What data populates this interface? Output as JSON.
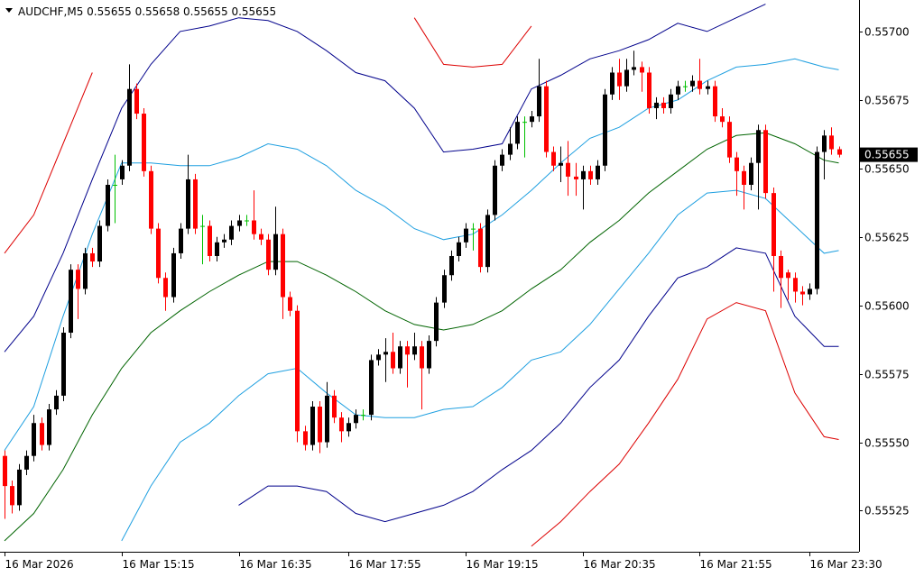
{
  "chart_data": {
    "type": "candlestick",
    "title": "AUDCHF,M5  0.55655 0.55658 0.55655 0.55655",
    "categories": [
      "16 Mar 2026",
      null,
      null,
      null,
      null,
      null,
      null,
      null,
      null,
      null,
      null,
      null,
      null,
      null,
      null,
      null,
      "16 Mar 15:15",
      null,
      null,
      null,
      null,
      null,
      null,
      null,
      null,
      null,
      null,
      null,
      null,
      null,
      null,
      null,
      "16 Mar 16:35",
      null,
      null,
      null,
      null,
      null,
      null,
      null,
      null,
      null,
      null,
      null,
      null,
      null,
      null,
      "16 Mar 17:55",
      null,
      null,
      null,
      null,
      null,
      null,
      null,
      null,
      null,
      null,
      null,
      null,
      null,
      null,
      null,
      "16 Mar 19:15",
      null,
      null,
      null,
      null,
      null,
      null,
      null,
      null,
      null,
      null,
      null,
      null,
      null,
      null,
      null,
      "16 Mar 20:35",
      null,
      null,
      null,
      null,
      null,
      null,
      null,
      null,
      null,
      null,
      null,
      null,
      null,
      null,
      null,
      "16 Mar 21:55",
      null,
      null,
      null,
      null,
      null,
      null,
      null,
      null,
      null,
      null,
      null,
      null,
      null,
      null,
      "16 Mar 23:30",
      null,
      null,
      null,
      null
    ],
    "ohlc": [
      [
        0.55545,
        0.55547,
        0.55522,
        0.55534
      ],
      [
        0.55534,
        0.55536,
        0.55524,
        0.55527
      ],
      [
        0.55527,
        0.55542,
        0.55525,
        0.5554
      ],
      [
        0.5554,
        0.55547,
        0.55538,
        0.55545
      ],
      [
        0.55545,
        0.5556,
        0.55543,
        0.55557
      ],
      [
        0.55557,
        0.55559,
        0.55547,
        0.55549
      ],
      [
        0.55549,
        0.55564,
        0.55547,
        0.55562
      ],
      [
        0.55562,
        0.55569,
        0.5556,
        0.55567
      ],
      [
        0.55567,
        0.55592,
        0.55565,
        0.5559
      ],
      [
        0.5559,
        0.55615,
        0.55588,
        0.55613
      ],
      [
        0.55613,
        0.55615,
        0.55595,
        0.55606
      ],
      [
        0.55606,
        0.55621,
        0.55604,
        0.55619
      ],
      [
        0.55619,
        0.55621,
        0.55614,
        0.55616
      ],
      [
        0.55616,
        0.55631,
        0.55614,
        0.55629
      ],
      [
        0.55629,
        0.55646,
        0.55627,
        0.55644
      ],
      [
        0.55644,
        0.55655,
        0.5563,
        0.55644
      ],
      [
        0.55646,
        0.55653,
        0.55644,
        0.55651
      ],
      [
        0.55651,
        0.55688,
        0.55649,
        0.55679
      ],
      [
        0.55679,
        0.55681,
        0.55668,
        0.5567
      ],
      [
        0.5567,
        0.55672,
        0.55647,
        0.55649
      ],
      [
        0.55649,
        0.55651,
        0.55626,
        0.55628
      ],
      [
        0.55628,
        0.5563,
        0.55608,
        0.5561
      ],
      [
        0.5561,
        0.55612,
        0.55598,
        0.55603
      ],
      [
        0.55603,
        0.55621,
        0.55601,
        0.55619
      ],
      [
        0.55619,
        0.5563,
        0.55617,
        0.55628
      ],
      [
        0.55628,
        0.55655,
        0.55626,
        0.55646
      ],
      [
        0.55646,
        0.55648,
        0.55626,
        0.55628
      ],
      [
        0.55629,
        0.55633,
        0.55615,
        0.55629
      ],
      [
        0.55629,
        0.55631,
        0.55616,
        0.55618
      ],
      [
        0.55618,
        0.55625,
        0.55616,
        0.55623
      ],
      [
        0.55623,
        0.55626,
        0.55621,
        0.55624
      ],
      [
        0.55624,
        0.55631,
        0.55622,
        0.55629
      ],
      [
        0.55629,
        0.55633,
        0.55627,
        0.55631
      ],
      [
        0.55631,
        0.55633,
        0.55629,
        0.55631
      ],
      [
        0.55631,
        0.55642,
        0.55624,
        0.55626
      ],
      [
        0.55626,
        0.55628,
        0.55622,
        0.55624
      ],
      [
        0.55624,
        0.55626,
        0.55611,
        0.55613
      ],
      [
        0.55613,
        0.55636,
        0.55611,
        0.55626
      ],
      [
        0.55626,
        0.55628,
        0.55595,
        0.55603
      ],
      [
        0.55603,
        0.55605,
        0.55596,
        0.55598
      ],
      [
        0.55598,
        0.556,
        0.5555,
        0.55554
      ],
      [
        0.55554,
        0.55556,
        0.55547,
        0.55549
      ],
      [
        0.55549,
        0.55565,
        0.55547,
        0.55563
      ],
      [
        0.55563,
        0.55565,
        0.55546,
        0.5555
      ],
      [
        0.5555,
        0.55572,
        0.55548,
        0.55567
      ],
      [
        0.55567,
        0.55569,
        0.55557,
        0.55559
      ],
      [
        0.55559,
        0.55561,
        0.5555,
        0.55554
      ],
      [
        0.55554,
        0.55559,
        0.55552,
        0.55557
      ],
      [
        0.55557,
        0.55562,
        0.55555,
        0.5556
      ],
      [
        0.5556,
        0.55562,
        0.55558,
        0.5556
      ],
      [
        0.5556,
        0.55582,
        0.55558,
        0.5558
      ],
      [
        0.5558,
        0.55584,
        0.55578,
        0.55582
      ],
      [
        0.55582,
        0.55588,
        0.55572,
        0.55583
      ],
      [
        0.55583,
        0.5559,
        0.55575,
        0.55577
      ],
      [
        0.55577,
        0.55587,
        0.55575,
        0.55585
      ],
      [
        0.55585,
        0.55587,
        0.5557,
        0.55582
      ],
      [
        0.55582,
        0.5559,
        0.5558,
        0.55585
      ],
      [
        0.55585,
        0.55587,
        0.55562,
        0.55577
      ],
      [
        0.55577,
        0.55589,
        0.55575,
        0.55587
      ],
      [
        0.55587,
        0.55603,
        0.55585,
        0.55601
      ],
      [
        0.55601,
        0.55613,
        0.55599,
        0.55611
      ],
      [
        0.55611,
        0.5562,
        0.55609,
        0.55618
      ],
      [
        0.55618,
        0.55625,
        0.55616,
        0.55623
      ],
      [
        0.55623,
        0.5563,
        0.55621,
        0.55628
      ],
      [
        0.55628,
        0.5563,
        0.5562,
        0.55628
      ],
      [
        0.55628,
        0.5563,
        0.55612,
        0.55614
      ],
      [
        0.55614,
        0.55635,
        0.55612,
        0.55633
      ],
      [
        0.55633,
        0.55653,
        0.55631,
        0.55651
      ],
      [
        0.55651,
        0.55657,
        0.55649,
        0.55655
      ],
      [
        0.55655,
        0.55665,
        0.55653,
        0.55659
      ],
      [
        0.55659,
        0.55669,
        0.55657,
        0.55667
      ],
      [
        0.55667,
        0.55669,
        0.55654,
        0.55667
      ],
      [
        0.55667,
        0.55671,
        0.55665,
        0.55669
      ],
      [
        0.55669,
        0.5569,
        0.55667,
        0.5568
      ],
      [
        0.5568,
        0.55682,
        0.55654,
        0.55656
      ],
      [
        0.55656,
        0.55658,
        0.55649,
        0.55651
      ],
      [
        0.55651,
        0.55658,
        0.55645,
        0.55652
      ],
      [
        0.55652,
        0.5566,
        0.5564,
        0.55647
      ],
      [
        0.55647,
        0.55652,
        0.5564,
        0.55646
      ],
      [
        0.55646,
        0.55651,
        0.55635,
        0.55649
      ],
      [
        0.55649,
        0.55651,
        0.55644,
        0.55646
      ],
      [
        0.55646,
        0.55653,
        0.55644,
        0.55651
      ],
      [
        0.55651,
        0.55679,
        0.55649,
        0.55677
      ],
      [
        0.55677,
        0.55687,
        0.55675,
        0.55685
      ],
      [
        0.55685,
        0.5569,
        0.55675,
        0.5568
      ],
      [
        0.5568,
        0.5569,
        0.55678,
        0.55686
      ],
      [
        0.55686,
        0.55693,
        0.55684,
        0.55687
      ],
      [
        0.55687,
        0.55689,
        0.55678,
        0.55685
      ],
      [
        0.55685,
        0.55687,
        0.5567,
        0.55672
      ],
      [
        0.55672,
        0.55676,
        0.55668,
        0.55674
      ],
      [
        0.55674,
        0.55676,
        0.5567,
        0.55672
      ],
      [
        0.55672,
        0.55679,
        0.5567,
        0.55677
      ],
      [
        0.55677,
        0.55682,
        0.55675,
        0.5568
      ],
      [
        0.5568,
        0.55682,
        0.55678,
        0.5568
      ],
      [
        0.5568,
        0.55684,
        0.55678,
        0.55682
      ],
      [
        0.55682,
        0.5569,
        0.55677,
        0.55679
      ],
      [
        0.55679,
        0.55682,
        0.55677,
        0.5568
      ],
      [
        0.5568,
        0.55682,
        0.55667,
        0.55669
      ],
      [
        0.55669,
        0.55672,
        0.55665,
        0.55667
      ],
      [
        0.55667,
        0.55669,
        0.55652,
        0.55654
      ],
      [
        0.55654,
        0.55656,
        0.5564,
        0.55649
      ],
      [
        0.55649,
        0.55651,
        0.55635,
        0.55644
      ],
      [
        0.55644,
        0.55654,
        0.55642,
        0.55652
      ],
      [
        0.55652,
        0.55666,
        0.55635,
        0.55664
      ],
      [
        0.55664,
        0.55666,
        0.55639,
        0.55641
      ],
      [
        0.55641,
        0.55643,
        0.55605,
        0.55618
      ],
      [
        0.55618,
        0.5562,
        0.55599,
        0.5561
      ],
      [
        0.55612,
        0.55613,
        0.55602,
        0.5561
      ],
      [
        0.5561,
        0.55612,
        0.55601,
        0.55605
      ],
      [
        0.55605,
        0.55607,
        0.556,
        0.55604
      ],
      [
        0.55604,
        0.55608,
        0.55602,
        0.55606
      ],
      [
        0.55606,
        0.55658,
        0.55604,
        0.55656
      ],
      [
        0.55656,
        0.55664,
        0.55646,
        0.55662
      ],
      [
        0.55662,
        0.55665,
        0.55655,
        0.55657
      ],
      [
        0.55657,
        0.55658,
        0.55654,
        0.55655
      ]
    ],
    "up_color": "#000000",
    "down_color": "#ff0000",
    "flat_color": "#00c000",
    "bands_x": [
      0,
      4,
      8,
      12,
      16,
      20,
      24,
      28,
      32,
      36,
      40,
      44,
      48,
      52,
      56,
      60,
      64,
      68,
      72,
      76,
      80,
      84,
      88,
      92,
      96,
      100,
      104,
      108,
      112,
      114
    ],
    "bands": [
      {
        "color": "#006400",
        "values": [
          0.55514,
          0.55524,
          0.5554,
          0.5556,
          0.55577,
          0.5559,
          0.55598,
          0.55605,
          0.55611,
          0.55616,
          0.55616,
          0.55611,
          0.55605,
          0.55598,
          0.55593,
          0.55591,
          0.55593,
          0.55598,
          0.55606,
          0.55613,
          0.55623,
          0.55631,
          0.55641,
          0.55649,
          0.55657,
          0.55662,
          0.55663,
          0.55659,
          0.55653,
          0.55652
        ]
      },
      {
        "color": "#1e9fe0",
        "values": [
          0.55547,
          0.55563,
          0.55596,
          0.55626,
          0.55652,
          0.55652,
          0.55651,
          0.55651,
          0.55654,
          0.55659,
          0.55657,
          0.55651,
          0.55642,
          0.55636,
          0.55628,
          0.55624,
          0.55626,
          0.55633,
          0.55642,
          0.55652,
          0.55661,
          0.55665,
          0.55672,
          0.55675,
          0.55682,
          0.55687,
          0.55688,
          0.5569,
          0.55687,
          0.55686
        ]
      },
      {
        "color": "#1e9fe0",
        "values": [
          null,
          null,
          null,
          null,
          0.55514,
          0.55534,
          0.5555,
          0.55557,
          0.55567,
          0.55575,
          0.55577,
          0.55568,
          0.5556,
          0.55559,
          0.55559,
          0.55562,
          0.55563,
          0.5557,
          0.5558,
          0.55583,
          0.55593,
          0.55606,
          0.55619,
          0.55633,
          0.55641,
          0.55642,
          0.55639,
          0.55629,
          0.55619,
          0.5562
        ]
      },
      {
        "color": "#00008b",
        "values": [
          0.55583,
          0.55596,
          0.55619,
          0.55646,
          0.55672,
          0.55688,
          0.557,
          0.55702,
          0.55705,
          0.55704,
          0.557,
          0.55693,
          0.55685,
          0.55682,
          0.55672,
          0.55656,
          0.55657,
          0.55659,
          0.55679,
          0.55684,
          0.5569,
          0.55693,
          0.55697,
          0.55703,
          0.557,
          0.55705,
          0.5571,
          null,
          null,
          null
        ]
      },
      {
        "color": "#00008b",
        "values": [
          null,
          null,
          null,
          null,
          null,
          null,
          null,
          null,
          0.55527,
          0.55534,
          0.55534,
          0.55532,
          0.55524,
          0.55521,
          0.55524,
          0.55527,
          0.55532,
          0.5554,
          0.55547,
          0.55557,
          0.5557,
          0.5558,
          0.55596,
          0.5561,
          0.55614,
          0.55621,
          0.55619,
          0.55596,
          0.55585,
          0.55585
        ]
      },
      {
        "color": "#dd0000",
        "values": [
          0.55619,
          0.55633,
          0.55659,
          0.55685,
          null,
          null,
          null,
          null,
          null,
          null,
          null,
          null,
          null,
          null,
          0.55705,
          0.55688,
          0.55687,
          0.55688,
          0.55702,
          null,
          null,
          null,
          null,
          null,
          null,
          null,
          null,
          null,
          null,
          null
        ]
      },
      {
        "color": "#dd0000",
        "values": [
          null,
          null,
          null,
          null,
          null,
          null,
          null,
          null,
          null,
          null,
          null,
          null,
          null,
          null,
          null,
          null,
          null,
          null,
          0.55512,
          0.55521,
          0.55532,
          0.55542,
          0.55557,
          0.55573,
          0.55595,
          0.55601,
          0.55598,
          0.55568,
          0.55552,
          0.55551
        ]
      }
    ],
    "ylim": [
      0.5551,
      0.557115
    ],
    "yticks": [
      {
        "value": 0.557,
        "label": "0.55700"
      },
      0.55675,
      {
        "value": 0.5565,
        "label": "0.55650"
      },
      0.55625,
      {
        "value": 0.556,
        "label": "0.55600"
      },
      0.55575,
      {
        "value": 0.5555,
        "label": "0.55550"
      },
      0.55525
    ],
    "last_price": 0.55655
  }
}
